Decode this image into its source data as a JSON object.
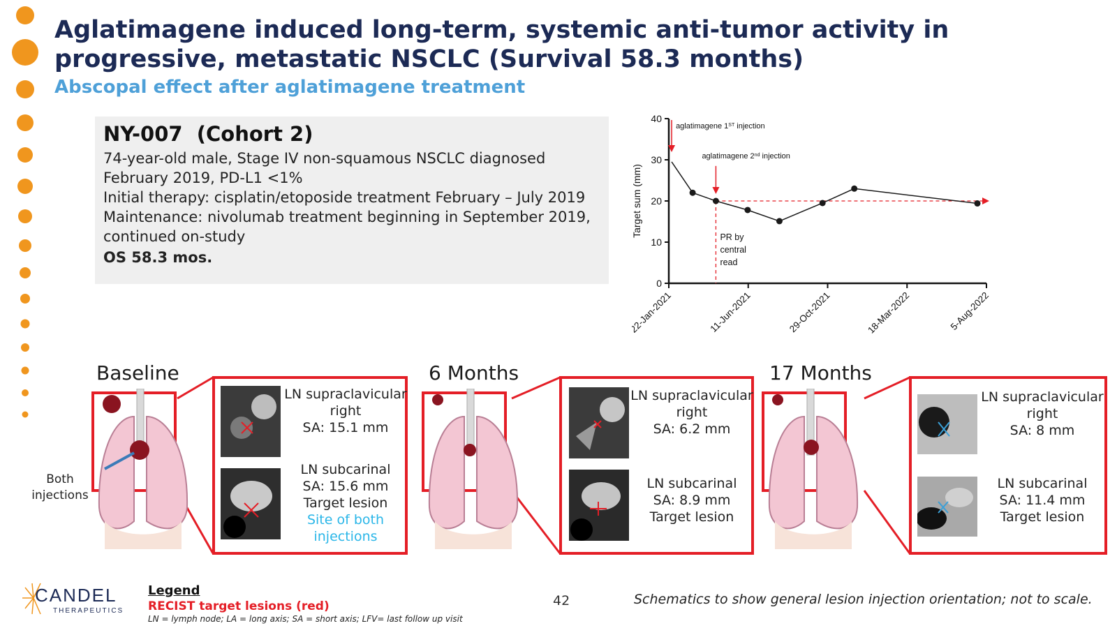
{
  "slide": {
    "title": "Aglatimagene induced long-term, systemic anti-tumor activity in progressive, metastatic NSCLC (Survival 58.3 months)",
    "subtitle": "Abscopal effect after aglatimagene treatment",
    "page_number": "42"
  },
  "case": {
    "title": "NY-007  (Cohort 2)",
    "lines": [
      "74-year-old male, Stage IV non-squamous NSCLC diagnosed February 2019, PD-L1 <1%",
      "Initial therapy: cisplatin/etoposide treatment February – July 2019",
      "Maintenance: nivolumab treatment beginning in September 2019, continued on-study"
    ],
    "outcome": "OS 58.3 mos."
  },
  "chart_data": {
    "type": "line",
    "ylabel": "Target sum  (mm)",
    "xlabel": "",
    "ylim": [
      0,
      40
    ],
    "yticks": [
      "0",
      "10",
      "20",
      "30",
      "40"
    ],
    "xticks": [
      "22-Jan-2021",
      "11-Jun-2021",
      "29-Oct-2021",
      "18-Mar-2022",
      "5-Aug-2022"
    ],
    "xlim": [
      "2021-01-22",
      "2022-08-05"
    ],
    "points": [
      {
        "x": "2021-01-27",
        "y": 29.5
      },
      {
        "x": "2021-03-05",
        "y": 22
      },
      {
        "x": "2021-04-15",
        "y": 20
      },
      {
        "x": "2021-06-10",
        "y": 17.8
      },
      {
        "x": "2021-08-05",
        "y": 15.1
      },
      {
        "x": "2021-10-20",
        "y": 19.5
      },
      {
        "x": "2021-12-15",
        "y": 23
      },
      {
        "x": "2022-07-20",
        "y": 19.4
      }
    ],
    "annotations": {
      "first_injection": {
        "x": "2021-01-27",
        "label_main": "aglatimagene 1",
        "label_sup": "ST",
        "label_tail": " injection"
      },
      "second_injection": {
        "x": "2021-04-15",
        "label_main": "aglatimagene 2",
        "label_sup": "nd",
        "label_tail": " injection"
      },
      "response": {
        "x": "2021-04-15",
        "lines": [
          "PR by",
          "central",
          "read"
        ]
      },
      "reference_line_y": 20
    },
    "colors": {
      "line": "#1a1a1a",
      "annotation": "#e41e26"
    },
    "grid": false,
    "legend": "none"
  },
  "panels": [
    {
      "label": "Baseline",
      "ln1": [
        "LN supraclavicular",
        "right",
        "SA: 15.1 mm"
      ],
      "ln2": [
        "LN subcarinal",
        "SA: 15.6 mm",
        "Target lesion"
      ],
      "ln2_extra": [
        "Site of both",
        "injections"
      ]
    },
    {
      "label": "6 Months",
      "ln1": [
        "LN supraclavicular",
        "right",
        "SA: 6.2 mm"
      ],
      "ln2": [
        "LN subcarinal",
        "SA: 8.9 mm",
        "Target lesion"
      ],
      "ln2_extra": []
    },
    {
      "label": "17 Months",
      "ln1": [
        "LN supraclavicular",
        "right",
        "SA: 8 mm"
      ],
      "ln2": [
        "LN subcarinal",
        "SA: 11.4 mm",
        "Target lesion"
      ],
      "ln2_extra": []
    }
  ],
  "injection_label": [
    "Both",
    "injections"
  ],
  "legend": {
    "title": "Legend",
    "red_text": "RECIST target lesions (red)",
    "abbreviations": "LN = lymph node; LA = long axis; SA = short axis; LFV= last follow up visit"
  },
  "footnote": "Schematics to show general lesion injection orientation; not to scale.",
  "logo": {
    "name": "CANDEL",
    "sub": "THERAPEUTICS"
  },
  "colors": {
    "title": "#1c2a55",
    "subtitle": "#4ea0d8",
    "accent_orange": "#f0961e",
    "red": "#e41e26",
    "cyan": "#2ab6e8"
  }
}
